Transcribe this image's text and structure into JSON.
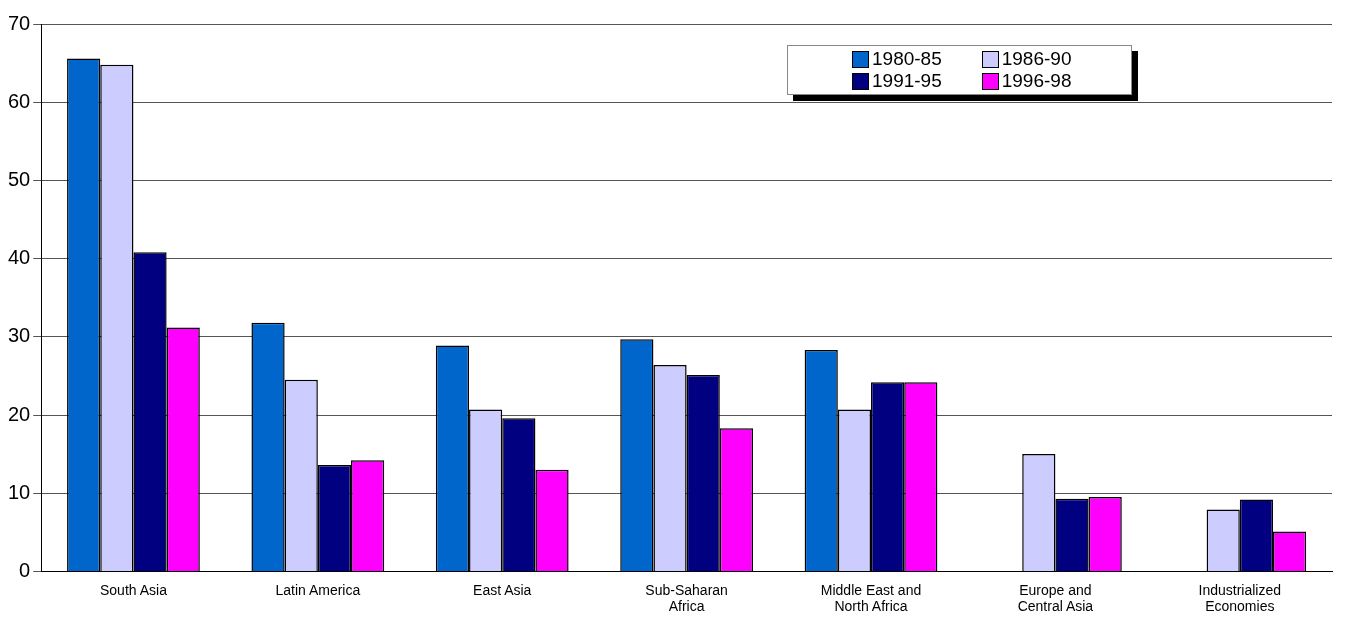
{
  "chart_data": {
    "type": "bar",
    "categories": [
      "South Asia",
      "Latin America",
      "East Asia",
      "Sub-Saharan Africa",
      "Middle East and North Africa",
      "Europe and Central Asia",
      "Industrialized Economies"
    ],
    "series": [
      {
        "name": "1980-85",
        "color": "#0066cc",
        "values": [
          65.6,
          31.8,
          28.9,
          29.7,
          28.3,
          null,
          null
        ]
      },
      {
        "name": "1986-90",
        "color": "#ccccff",
        "values": [
          64.8,
          24.5,
          20.7,
          26.4,
          20.7,
          15.0,
          7.9
        ]
      },
      {
        "name": "1991-95",
        "color": "#000080",
        "values": [
          40.8,
          13.6,
          19.6,
          25.1,
          24.2,
          9.3,
          9.2
        ]
      },
      {
        "name": "1996-98",
        "color": "#ff00ff",
        "values": [
          31.2,
          14.2,
          13.0,
          18.3,
          24.2,
          9.5,
          5.1
        ]
      }
    ],
    "ylim": [
      0,
      70
    ],
    "yticks": [
      0,
      10,
      20,
      30,
      40,
      50,
      60,
      70
    ],
    "grid": "y",
    "legend": "top right"
  }
}
